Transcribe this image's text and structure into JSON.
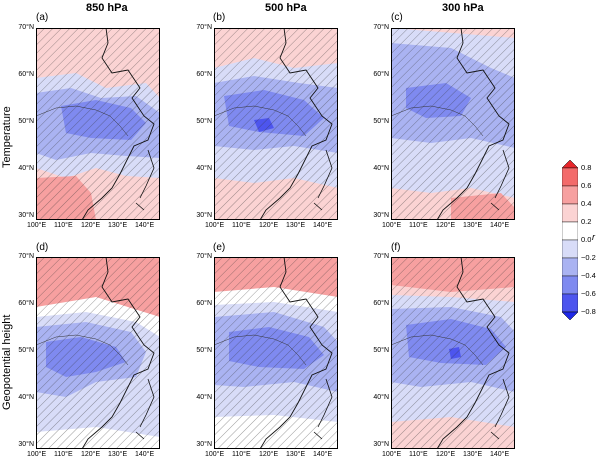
{
  "columns": [
    "850 hPa",
    "500 hPa",
    "300 hPa"
  ],
  "rows": [
    "Temperature",
    "Geopotential height"
  ],
  "panel_labels": [
    "(a)",
    "(b)",
    "(c)",
    "(d)",
    "(e)",
    "(f)"
  ],
  "lat_ticks": [
    "70°N",
    "60°N",
    "50°N",
    "40°N",
    "30°N"
  ],
  "lon_ticks": [
    "100°E",
    "110°E",
    "120°E",
    "130°E",
    "140°E"
  ],
  "colorbar": {
    "title": "r",
    "ticks": [
      "0.8",
      "0.6",
      "0.4",
      "0.2",
      "0.0",
      "−0.2",
      "−0.4",
      "−0.6",
      "−0.8"
    ],
    "colors": [
      "#e8262b",
      "#f36b6b",
      "#f7a0a0",
      "#fbd3d3",
      "#ffffff",
      "#d8dcf8",
      "#aab3f2",
      "#7f8af0",
      "#4d55ee",
      "#1e28e8"
    ]
  }
}
